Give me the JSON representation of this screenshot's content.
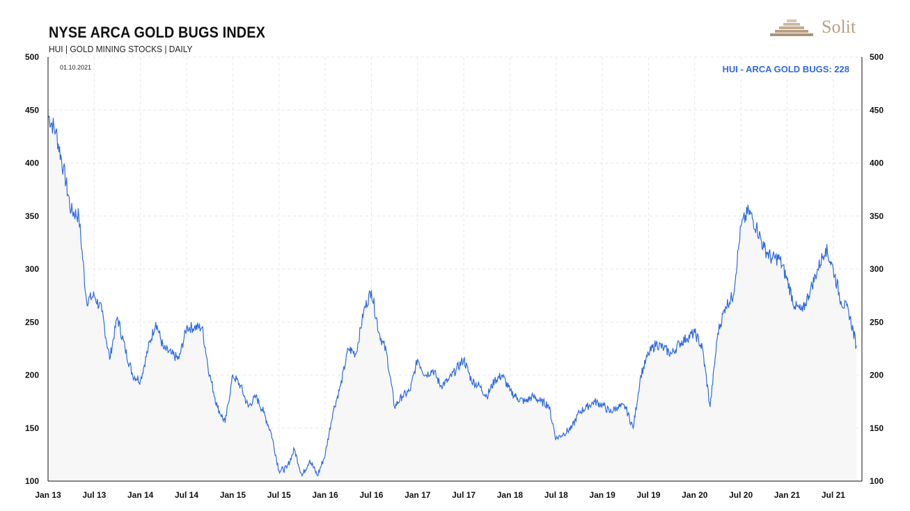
{
  "header": {
    "title": "NYSE ARCA GOLD BUGS INDEX",
    "subtitle": "HUI | GOLD MINING STOCKS | DAILY",
    "brand": "Solit",
    "logo_icon": "pyramid-logo-icon"
  },
  "colors": {
    "line": "#2f6ae4",
    "fill": "#f7f7f7",
    "grid": "#e6e6e6",
    "axis": "#111111",
    "brand": "#b89f83"
  },
  "chart_data": {
    "type": "line",
    "title": "NYSE ARCA GOLD BUGS INDEX",
    "subtitle": "HUI | GOLD MINING STOCKS | DAILY",
    "date_label": "01.10.2021",
    "series_label": "HUI - ARCA GOLD BUGS: 228",
    "xlabel": "",
    "ylabel": "",
    "ylim": [
      100,
      500
    ],
    "y_ticks": [
      100,
      150,
      200,
      250,
      300,
      350,
      400,
      450,
      500
    ],
    "y_axes": [
      "left",
      "right"
    ],
    "x_ticks": [
      "Jan 13",
      "Jul 13",
      "Jan 14",
      "Jul 14",
      "Jan 15",
      "Jul 15",
      "Jan 16",
      "Jul 16",
      "Jan 17",
      "Jul 17",
      "Jan 18",
      "Jul 18",
      "Jan 19",
      "Jul 19",
      "Jan 20",
      "Jul 20",
      "Jan 21",
      "Jul 21"
    ],
    "xlim": [
      "2013-01",
      "2021-10"
    ],
    "grid": true,
    "legend": "top-right",
    "series": [
      {
        "name": "HUI - ARCA GOLD BUGS",
        "x": [
          "2013-01",
          "2013-02",
          "2013-03",
          "2013-04",
          "2013-05",
          "2013-06",
          "2013-07",
          "2013-08",
          "2013-09",
          "2013-10",
          "2013-11",
          "2013-12",
          "2014-01",
          "2014-02",
          "2014-03",
          "2014-04",
          "2014-05",
          "2014-06",
          "2014-07",
          "2014-08",
          "2014-09",
          "2014-10",
          "2014-11",
          "2014-12",
          "2015-01",
          "2015-02",
          "2015-03",
          "2015-04",
          "2015-05",
          "2015-06",
          "2015-07",
          "2015-08",
          "2015-09",
          "2015-10",
          "2015-11",
          "2015-12",
          "2016-01",
          "2016-02",
          "2016-03",
          "2016-04",
          "2016-05",
          "2016-06",
          "2016-07",
          "2016-08",
          "2016-09",
          "2016-10",
          "2016-11",
          "2016-12",
          "2017-01",
          "2017-02",
          "2017-03",
          "2017-04",
          "2017-05",
          "2017-06",
          "2017-07",
          "2017-08",
          "2017-09",
          "2017-10",
          "2017-11",
          "2017-12",
          "2018-01",
          "2018-02",
          "2018-03",
          "2018-04",
          "2018-05",
          "2018-06",
          "2018-07",
          "2018-08",
          "2018-09",
          "2018-10",
          "2018-11",
          "2018-12",
          "2019-01",
          "2019-02",
          "2019-03",
          "2019-04",
          "2019-05",
          "2019-06",
          "2019-07",
          "2019-08",
          "2019-09",
          "2019-10",
          "2019-11",
          "2019-12",
          "2020-01",
          "2020-02",
          "2020-03",
          "2020-04",
          "2020-05",
          "2020-06",
          "2020-07",
          "2020-08",
          "2020-09",
          "2020-10",
          "2020-11",
          "2020-12",
          "2021-01",
          "2021-02",
          "2021-03",
          "2021-04",
          "2021-05",
          "2021-06",
          "2021-07",
          "2021-08",
          "2021-09",
          "2021-10"
        ],
        "values": [
          445,
          430,
          395,
          355,
          350,
          270,
          275,
          260,
          215,
          255,
          225,
          200,
          195,
          225,
          250,
          225,
          220,
          215,
          245,
          245,
          245,
          200,
          170,
          155,
          200,
          190,
          170,
          180,
          165,
          145,
          110,
          112,
          130,
          105,
          120,
          105,
          125,
          165,
          190,
          225,
          220,
          260,
          280,
          240,
          220,
          170,
          180,
          185,
          215,
          200,
          205,
          190,
          195,
          205,
          215,
          195,
          190,
          180,
          195,
          200,
          185,
          178,
          175,
          180,
          175,
          172,
          140,
          145,
          150,
          165,
          170,
          175,
          172,
          165,
          170,
          170,
          150,
          200,
          220,
          230,
          225,
          220,
          230,
          235,
          240,
          225,
          170,
          240,
          265,
          275,
          340,
          355,
          340,
          320,
          310,
          310,
          290,
          265,
          260,
          280,
          300,
          320,
          300,
          270,
          260,
          228
        ]
      }
    ]
  }
}
